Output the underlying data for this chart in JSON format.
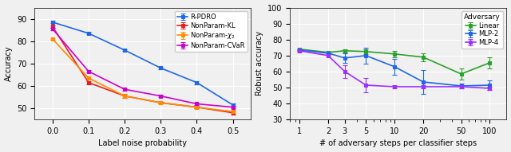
{
  "left": {
    "x": [
      0.0,
      0.1,
      0.2,
      0.3,
      0.4,
      0.5
    ],
    "series": {
      "R-PDRO": {
        "y": [
          88.5,
          83.5,
          76.0,
          68.0,
          61.5,
          51.5
        ],
        "yerr": [
          0.5,
          0.5,
          0.5,
          0.5,
          0.8,
          0.5
        ],
        "color": "#2166e8",
        "marker": "s"
      },
      "NonParam-KL": {
        "y": [
          86.5,
          61.5,
          55.5,
          52.5,
          50.5,
          48.0
        ],
        "yerr": [
          0.5,
          0.8,
          0.8,
          0.5,
          0.5,
          0.8
        ],
        "color": "#e82020",
        "marker": "s"
      },
      "NonParam-$\\chi_2$": {
        "y": [
          81.0,
          63.5,
          55.5,
          52.5,
          50.5,
          48.5
        ],
        "yerr": [
          0.5,
          0.8,
          0.8,
          0.5,
          0.5,
          0.5
        ],
        "color": "#ff8c00",
        "marker": "s"
      },
      "NonParam-CVaR": {
        "y": [
          85.5,
          66.5,
          58.5,
          55.5,
          52.0,
          50.5
        ],
        "yerr": [
          0.5,
          0.5,
          0.5,
          0.5,
          0.5,
          0.5
        ],
        "color": "#cc00cc",
        "marker": "s"
      }
    },
    "xlabel": "Label noise probability",
    "ylabel": "Accuracy",
    "ylim": [
      45,
      95
    ],
    "yticks": [
      50,
      60,
      70,
      80,
      90
    ],
    "xlim": [
      -0.05,
      0.55
    ],
    "xticks": [
      0.0,
      0.1,
      0.2,
      0.3,
      0.4,
      0.5
    ]
  },
  "right": {
    "x": [
      1,
      2,
      3,
      5,
      10,
      20,
      50,
      100
    ],
    "series": {
      "Linear": {
        "y": [
          74.0,
          72.0,
          73.0,
          72.5,
          71.0,
          69.0,
          58.5,
          65.5
        ],
        "yerr": [
          0.5,
          0.5,
          1.0,
          1.5,
          2.0,
          2.5,
          3.5,
          3.5
        ],
        "color": "#2ca02c",
        "marker": "s"
      },
      "MLP-2": {
        "y": [
          73.5,
          71.5,
          68.5,
          70.0,
          63.0,
          53.5,
          51.0,
          51.5
        ],
        "yerr": [
          0.5,
          0.5,
          3.0,
          5.0,
          5.0,
          7.5,
          1.5,
          3.0
        ],
        "color": "#2166e8",
        "marker": "s"
      },
      "MLP-4": {
        "y": [
          73.0,
          70.0,
          60.0,
          51.5,
          50.5,
          50.5,
          50.5,
          49.5
        ],
        "yerr": [
          0.5,
          0.5,
          4.0,
          4.5,
          1.0,
          1.0,
          1.0,
          1.0
        ],
        "color": "#9b30ff",
        "marker": "s"
      }
    },
    "xlabel": "# of adversary steps per classifier steps",
    "ylabel": "Robust accuracy",
    "ylim": [
      30,
      100
    ],
    "yticks": [
      30,
      40,
      50,
      60,
      70,
      80,
      90,
      100
    ],
    "legend_title": "Adversary"
  }
}
